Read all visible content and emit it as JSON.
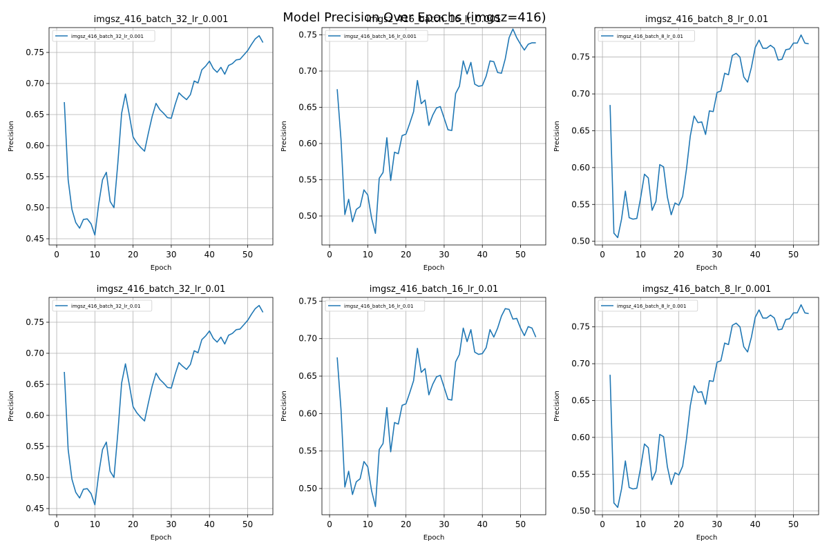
{
  "suptitle": "Model Precision Over Epochs (imgsz=416)",
  "colors": {
    "line": "#1f77b4",
    "grid": "#b0b0b0",
    "axis": "#000000"
  },
  "chart_data": [
    {
      "type": "line",
      "title": "imgsz_416_batch_32_lr_0.001",
      "xlabel": "Epoch",
      "ylabel": "Precision",
      "xlim": [
        -2,
        56.6
      ],
      "ylim": [
        0.44,
        0.79
      ],
      "xticks": [
        0,
        10,
        20,
        30,
        40,
        50
      ],
      "yticks": [
        0.45,
        0.5,
        0.55,
        0.6,
        0.65,
        0.7,
        0.75
      ],
      "ytick_labels": [
        "0.45",
        "0.50",
        "0.55",
        "0.60",
        "0.65",
        "0.70",
        "0.75"
      ],
      "grid": true,
      "legend_position": "top-left",
      "series": [
        {
          "name": "imgsz_416_batch_32_lr_0.001",
          "x": [
            2,
            3,
            4,
            5,
            6,
            7,
            8,
            9,
            10,
            11,
            12,
            13,
            14,
            15,
            16,
            17,
            18,
            19,
            20,
            21,
            22,
            23,
            24,
            25,
            26,
            27,
            28,
            29,
            30,
            31,
            32,
            33,
            34,
            35,
            36,
            37,
            38,
            39,
            40,
            41,
            42,
            43,
            44,
            45,
            46,
            47,
            48,
            49,
            50,
            51,
            52,
            53,
            54
          ],
          "y": [
            0.67,
            0.545,
            0.497,
            0.476,
            0.467,
            0.481,
            0.482,
            0.474,
            0.456,
            0.506,
            0.545,
            0.557,
            0.51,
            0.5,
            0.571,
            0.652,
            0.683,
            0.65,
            0.614,
            0.604,
            0.597,
            0.591,
            0.62,
            0.647,
            0.668,
            0.658,
            0.652,
            0.645,
            0.644,
            0.666,
            0.685,
            0.679,
            0.674,
            0.682,
            0.704,
            0.701,
            0.722,
            0.728,
            0.736,
            0.724,
            0.718,
            0.726,
            0.715,
            0.729,
            0.732,
            0.738,
            0.739,
            0.746,
            0.753,
            0.763,
            0.772,
            0.777,
            0.766
          ]
        }
      ]
    },
    {
      "type": "line",
      "title": "imgsz_416_batch_16_lr_0.001",
      "xlabel": "Epoch",
      "ylabel": "Precision",
      "xlim": [
        -2,
        56.6
      ],
      "ylim": [
        0.46,
        0.76
      ],
      "xticks": [
        0,
        10,
        20,
        30,
        40,
        50
      ],
      "yticks": [
        0.5,
        0.55,
        0.6,
        0.65,
        0.7,
        0.75
      ],
      "ytick_labels": [
        "0.50",
        "0.55",
        "0.60",
        "0.65",
        "0.70",
        "0.75"
      ],
      "grid": true,
      "legend_position": "top-left",
      "series": [
        {
          "name": "imgsz_416_batch_16_lr_0.001",
          "x": [
            2,
            3,
            4,
            5,
            6,
            7,
            8,
            9,
            10,
            11,
            12,
            13,
            14,
            15,
            16,
            17,
            18,
            19,
            20,
            21,
            22,
            23,
            24,
            25,
            26,
            27,
            28,
            29,
            30,
            31,
            32,
            33,
            34,
            35,
            36,
            37,
            38,
            39,
            40,
            41,
            42,
            43,
            44,
            45,
            46,
            47,
            48,
            49,
            50,
            51,
            52,
            53,
            54
          ],
          "y": [
            0.675,
            0.605,
            0.502,
            0.523,
            0.492,
            0.509,
            0.513,
            0.536,
            0.529,
            0.497,
            0.476,
            0.552,
            0.56,
            0.608,
            0.549,
            0.588,
            0.586,
            0.611,
            0.613,
            0.628,
            0.644,
            0.687,
            0.655,
            0.66,
            0.625,
            0.639,
            0.649,
            0.651,
            0.635,
            0.619,
            0.618,
            0.669,
            0.679,
            0.714,
            0.696,
            0.712,
            0.682,
            0.679,
            0.68,
            0.693,
            0.714,
            0.713,
            0.698,
            0.697,
            0.717,
            0.746,
            0.758,
            0.746,
            0.737,
            0.729,
            0.737,
            0.739,
            0.739
          ]
        }
      ]
    },
    {
      "type": "line",
      "title": "imgsz_416_batch_8_lr_0.01",
      "xlabel": "Epoch",
      "ylabel": "Precision",
      "xlim": [
        -2,
        56.6
      ],
      "ylim": [
        0.495,
        0.79
      ],
      "xticks": [
        0,
        10,
        20,
        30,
        40,
        50
      ],
      "yticks": [
        0.5,
        0.55,
        0.6,
        0.65,
        0.7,
        0.75
      ],
      "ytick_labels": [
        "0.50",
        "0.55",
        "0.60",
        "0.65",
        "0.70",
        "0.75"
      ],
      "grid": true,
      "legend_position": "top-left",
      "series": [
        {
          "name": "imgsz_416_batch_8_lr_0.01",
          "x": [
            2,
            3,
            4,
            5,
            6,
            7,
            8,
            9,
            10,
            11,
            12,
            13,
            14,
            15,
            16,
            17,
            18,
            19,
            20,
            21,
            22,
            23,
            24,
            25,
            26,
            27,
            28,
            29,
            30,
            31,
            32,
            33,
            34,
            35,
            36,
            37,
            38,
            39,
            40,
            41,
            42,
            43,
            44,
            45,
            46,
            47,
            48,
            49,
            50,
            51,
            52,
            53,
            54
          ],
          "y": [
            0.685,
            0.511,
            0.505,
            0.53,
            0.568,
            0.532,
            0.53,
            0.531,
            0.559,
            0.591,
            0.586,
            0.542,
            0.554,
            0.604,
            0.601,
            0.56,
            0.536,
            0.552,
            0.549,
            0.561,
            0.598,
            0.643,
            0.67,
            0.661,
            0.662,
            0.645,
            0.677,
            0.676,
            0.702,
            0.704,
            0.728,
            0.726,
            0.752,
            0.755,
            0.75,
            0.723,
            0.716,
            0.736,
            0.763,
            0.773,
            0.762,
            0.762,
            0.766,
            0.762,
            0.746,
            0.747,
            0.76,
            0.761,
            0.769,
            0.769,
            0.78,
            0.769,
            0.768
          ]
        }
      ]
    },
    {
      "type": "line",
      "title": "imgsz_416_batch_32_lr_0.01",
      "xlabel": "Epoch",
      "ylabel": "Precision",
      "xlim": [
        -2,
        56.6
      ],
      "ylim": [
        0.44,
        0.79
      ],
      "xticks": [
        0,
        10,
        20,
        30,
        40,
        50
      ],
      "yticks": [
        0.45,
        0.5,
        0.55,
        0.6,
        0.65,
        0.7,
        0.75
      ],
      "ytick_labels": [
        "0.45",
        "0.50",
        "0.55",
        "0.60",
        "0.65",
        "0.70",
        "0.75"
      ],
      "grid": true,
      "legend_position": "top-left",
      "series": [
        {
          "name": "imgsz_416_batch_32_lr_0.01",
          "x": [
            2,
            3,
            4,
            5,
            6,
            7,
            8,
            9,
            10,
            11,
            12,
            13,
            14,
            15,
            16,
            17,
            18,
            19,
            20,
            21,
            22,
            23,
            24,
            25,
            26,
            27,
            28,
            29,
            30,
            31,
            32,
            33,
            34,
            35,
            36,
            37,
            38,
            39,
            40,
            41,
            42,
            43,
            44,
            45,
            46,
            47,
            48,
            49,
            50,
            51,
            52,
            53,
            54
          ],
          "y": [
            0.67,
            0.545,
            0.497,
            0.476,
            0.467,
            0.481,
            0.482,
            0.474,
            0.456,
            0.506,
            0.545,
            0.557,
            0.51,
            0.5,
            0.571,
            0.652,
            0.683,
            0.65,
            0.614,
            0.604,
            0.597,
            0.591,
            0.62,
            0.647,
            0.668,
            0.658,
            0.652,
            0.645,
            0.644,
            0.666,
            0.685,
            0.679,
            0.674,
            0.682,
            0.704,
            0.701,
            0.722,
            0.728,
            0.736,
            0.724,
            0.718,
            0.726,
            0.715,
            0.729,
            0.732,
            0.738,
            0.739,
            0.746,
            0.753,
            0.763,
            0.772,
            0.777,
            0.766
          ]
        }
      ]
    },
    {
      "type": "line",
      "title": "imgsz_416_batch_16_lr_0.01",
      "xlabel": "Epoch",
      "ylabel": "Precision",
      "xlim": [
        -2,
        56.6
      ],
      "ylim": [
        0.465,
        0.755
      ],
      "xticks": [
        0,
        10,
        20,
        30,
        40,
        50
      ],
      "yticks": [
        0.5,
        0.55,
        0.6,
        0.65,
        0.7,
        0.75
      ],
      "ytick_labels": [
        "0.50",
        "0.55",
        "0.60",
        "0.65",
        "0.70",
        "0.75"
      ],
      "grid": true,
      "legend_position": "top-left",
      "series": [
        {
          "name": "imgsz_416_batch_16_lr_0.01",
          "x": [
            2,
            3,
            4,
            5,
            6,
            7,
            8,
            9,
            10,
            11,
            12,
            13,
            14,
            15,
            16,
            17,
            18,
            19,
            20,
            21,
            22,
            23,
            24,
            25,
            26,
            27,
            28,
            29,
            30,
            31,
            32,
            33,
            34,
            35,
            36,
            37,
            38,
            39,
            40,
            41,
            42,
            43,
            44,
            45,
            46,
            47,
            48,
            49,
            50,
            51,
            52,
            53,
            54
          ],
          "y": [
            0.675,
            0.605,
            0.502,
            0.523,
            0.492,
            0.509,
            0.513,
            0.536,
            0.529,
            0.497,
            0.476,
            0.552,
            0.56,
            0.608,
            0.549,
            0.588,
            0.586,
            0.611,
            0.613,
            0.628,
            0.644,
            0.687,
            0.655,
            0.66,
            0.625,
            0.639,
            0.649,
            0.651,
            0.635,
            0.619,
            0.618,
            0.669,
            0.679,
            0.714,
            0.696,
            0.712,
            0.682,
            0.679,
            0.68,
            0.688,
            0.712,
            0.702,
            0.714,
            0.73,
            0.74,
            0.739,
            0.726,
            0.727,
            0.714,
            0.704,
            0.716,
            0.714,
            0.702
          ]
        }
      ]
    },
    {
      "type": "line",
      "title": "imgsz_416_batch_8_lr_0.001",
      "xlabel": "Epoch",
      "ylabel": "Precision",
      "xlim": [
        -2,
        56.6
      ],
      "ylim": [
        0.495,
        0.79
      ],
      "xticks": [
        0,
        10,
        20,
        30,
        40,
        50
      ],
      "yticks": [
        0.5,
        0.55,
        0.6,
        0.65,
        0.7,
        0.75
      ],
      "ytick_labels": [
        "0.50",
        "0.55",
        "0.60",
        "0.65",
        "0.70",
        "0.75"
      ],
      "grid": true,
      "legend_position": "top-left",
      "series": [
        {
          "name": "imgsz_416_batch_8_lr_0.001",
          "x": [
            2,
            3,
            4,
            5,
            6,
            7,
            8,
            9,
            10,
            11,
            12,
            13,
            14,
            15,
            16,
            17,
            18,
            19,
            20,
            21,
            22,
            23,
            24,
            25,
            26,
            27,
            28,
            29,
            30,
            31,
            32,
            33,
            34,
            35,
            36,
            37,
            38,
            39,
            40,
            41,
            42,
            43,
            44,
            45,
            46,
            47,
            48,
            49,
            50,
            51,
            52,
            53,
            54
          ],
          "y": [
            0.685,
            0.511,
            0.505,
            0.53,
            0.568,
            0.532,
            0.53,
            0.531,
            0.559,
            0.591,
            0.586,
            0.542,
            0.554,
            0.604,
            0.601,
            0.56,
            0.536,
            0.552,
            0.549,
            0.561,
            0.598,
            0.643,
            0.67,
            0.661,
            0.662,
            0.645,
            0.677,
            0.676,
            0.702,
            0.704,
            0.728,
            0.726,
            0.752,
            0.755,
            0.75,
            0.723,
            0.716,
            0.736,
            0.763,
            0.773,
            0.762,
            0.762,
            0.766,
            0.762,
            0.746,
            0.747,
            0.76,
            0.761,
            0.769,
            0.769,
            0.78,
            0.769,
            0.768
          ]
        }
      ]
    }
  ]
}
